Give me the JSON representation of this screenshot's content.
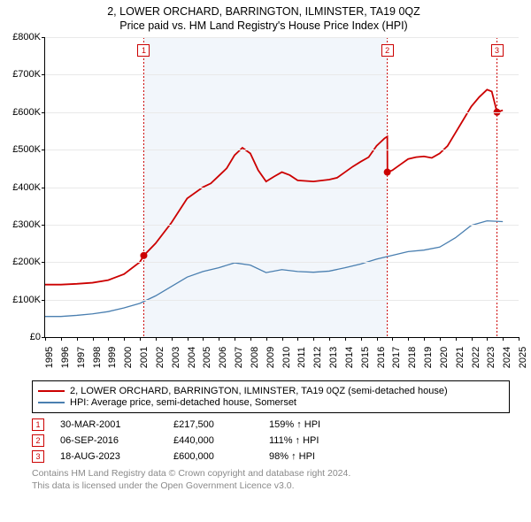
{
  "title": {
    "line1": "2, LOWER ORCHARD, BARRINGTON, ILMINSTER, TA19 0QZ",
    "line2": "Price paid vs. HM Land Registry's House Price Index (HPI)"
  },
  "chart": {
    "type": "line",
    "background_color": "#ffffff",
    "grid_color": "#e9e9e9",
    "axis_color": "#000000",
    "label_fontsize": 11,
    "x": {
      "min": 1995,
      "max": 2025,
      "tick_step": 1,
      "labels": [
        "1995",
        "1996",
        "1997",
        "1998",
        "1999",
        "2000",
        "2001",
        "2002",
        "2003",
        "2004",
        "2005",
        "2006",
        "2007",
        "2008",
        "2009",
        "2010",
        "2011",
        "2012",
        "2013",
        "2014",
        "2015",
        "2016",
        "2017",
        "2018",
        "2019",
        "2020",
        "2021",
        "2022",
        "2023",
        "2024",
        "2025"
      ]
    },
    "y": {
      "min": 0,
      "max": 800000,
      "tick_step": 100000,
      "labels": [
        "£0",
        "£100K",
        "£200K",
        "£300K",
        "£400K",
        "£500K",
        "£600K",
        "£700K",
        "£800K"
      ]
    },
    "series": [
      {
        "id": "price_paid",
        "label": "2, LOWER ORCHARD, BARRINGTON, ILMINSTER, TA19 0QZ (semi-detached house)",
        "color": "#cc0000",
        "line_width": 1.8,
        "points": [
          [
            1995.0,
            140000
          ],
          [
            1996.0,
            140000
          ],
          [
            1997.0,
            142000
          ],
          [
            1998.0,
            145000
          ],
          [
            1999.0,
            152000
          ],
          [
            2000.0,
            168000
          ],
          [
            2001.0,
            200000
          ],
          [
            2001.25,
            217500
          ],
          [
            2002.0,
            250000
          ],
          [
            2003.0,
            305000
          ],
          [
            2004.0,
            370000
          ],
          [
            2005.0,
            400000
          ],
          [
            2005.5,
            410000
          ],
          [
            2006.0,
            430000
          ],
          [
            2006.5,
            450000
          ],
          [
            2007.0,
            485000
          ],
          [
            2007.5,
            505000
          ],
          [
            2008.0,
            490000
          ],
          [
            2008.5,
            445000
          ],
          [
            2009.0,
            415000
          ],
          [
            2009.5,
            428000
          ],
          [
            2010.0,
            440000
          ],
          [
            2010.5,
            432000
          ],
          [
            2011.0,
            418000
          ],
          [
            2012.0,
            415000
          ],
          [
            2013.0,
            420000
          ],
          [
            2013.5,
            425000
          ],
          [
            2014.0,
            440000
          ],
          [
            2014.5,
            455000
          ],
          [
            2015.0,
            468000
          ],
          [
            2015.5,
            480000
          ],
          [
            2016.0,
            510000
          ],
          [
            2016.5,
            530000
          ],
          [
            2016.68,
            535000
          ],
          [
            2016.69,
            440000
          ],
          [
            2017.0,
            445000
          ],
          [
            2017.5,
            460000
          ],
          [
            2018.0,
            475000
          ],
          [
            2018.5,
            480000
          ],
          [
            2019.0,
            482000
          ],
          [
            2019.5,
            478000
          ],
          [
            2020.0,
            490000
          ],
          [
            2020.5,
            510000
          ],
          [
            2021.0,
            545000
          ],
          [
            2021.5,
            580000
          ],
          [
            2022.0,
            615000
          ],
          [
            2022.5,
            640000
          ],
          [
            2023.0,
            660000
          ],
          [
            2023.3,
            655000
          ],
          [
            2023.63,
            600000
          ],
          [
            2024.0,
            605000
          ]
        ]
      },
      {
        "id": "hpi",
        "label": "HPI: Average price, semi-detached house, Somerset",
        "color": "#4a7fb0",
        "line_width": 1.3,
        "points": [
          [
            1995.0,
            55000
          ],
          [
            1996.0,
            55000
          ],
          [
            1997.0,
            58000
          ],
          [
            1998.0,
            62000
          ],
          [
            1999.0,
            68000
          ],
          [
            2000.0,
            78000
          ],
          [
            2001.0,
            90000
          ],
          [
            2002.0,
            110000
          ],
          [
            2003.0,
            135000
          ],
          [
            2004.0,
            160000
          ],
          [
            2005.0,
            175000
          ],
          [
            2006.0,
            185000
          ],
          [
            2007.0,
            198000
          ],
          [
            2008.0,
            192000
          ],
          [
            2009.0,
            172000
          ],
          [
            2010.0,
            180000
          ],
          [
            2011.0,
            175000
          ],
          [
            2012.0,
            173000
          ],
          [
            2013.0,
            176000
          ],
          [
            2014.0,
            185000
          ],
          [
            2015.0,
            195000
          ],
          [
            2016.0,
            208000
          ],
          [
            2017.0,
            218000
          ],
          [
            2018.0,
            228000
          ],
          [
            2019.0,
            232000
          ],
          [
            2020.0,
            240000
          ],
          [
            2021.0,
            265000
          ],
          [
            2022.0,
            298000
          ],
          [
            2023.0,
            310000
          ],
          [
            2024.0,
            308000
          ]
        ]
      }
    ],
    "event_lines": [
      {
        "n": "1",
        "x": 2001.25,
        "color": "#cc0000"
      },
      {
        "n": "2",
        "x": 2016.68,
        "color": "#cc0000"
      },
      {
        "n": "3",
        "x": 2023.63,
        "color": "#cc0000"
      }
    ],
    "sale_markers": [
      {
        "x": 2001.25,
        "y": 217500,
        "color": "#cc0000"
      },
      {
        "x": 2016.68,
        "y": 440000,
        "color": "#cc0000"
      },
      {
        "x": 2023.63,
        "y": 600000,
        "color": "#cc0000"
      }
    ],
    "shade_band": {
      "from": 2001.25,
      "to": 2016.68,
      "color": "#f2f6fb"
    }
  },
  "legend": {
    "rows": [
      {
        "color": "#cc0000",
        "width": 2,
        "label": "2, LOWER ORCHARD, BARRINGTON, ILMINSTER, TA19 0QZ (semi-detached house)"
      },
      {
        "color": "#4a7fb0",
        "width": 1.3,
        "label": "HPI: Average price, semi-detached house, Somerset"
      }
    ]
  },
  "events": [
    {
      "n": "1",
      "date": "30-MAR-2001",
      "price": "£217,500",
      "delta": "159% ↑ HPI"
    },
    {
      "n": "2",
      "date": "06-SEP-2016",
      "price": "£440,000",
      "delta": "111% ↑ HPI"
    },
    {
      "n": "3",
      "date": "18-AUG-2023",
      "price": "£600,000",
      "delta": "98% ↑ HPI"
    }
  ],
  "footer": {
    "line1": "Contains HM Land Registry data © Crown copyright and database right 2024.",
    "line2": "This data is licensed under the Open Government Licence v3.0."
  }
}
